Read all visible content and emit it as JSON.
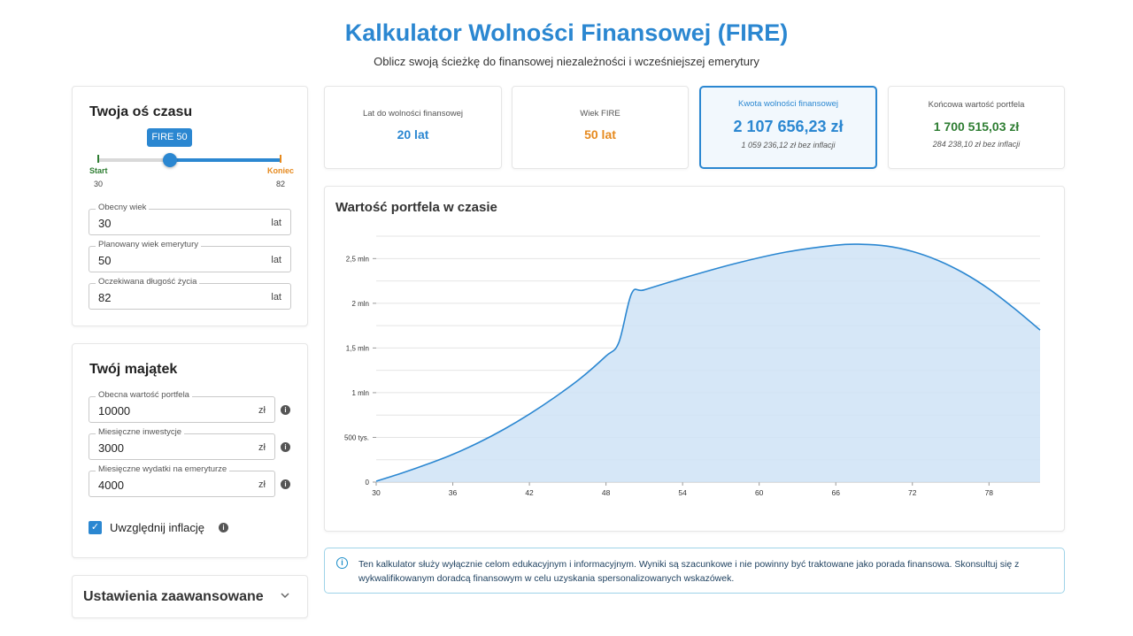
{
  "header": {
    "title": "Kalkulator Wolności Finansowej (FIRE)",
    "subtitle": "Oblicz swoją ścieżkę do finansowej niezależności i wcześniejszej emerytury"
  },
  "timeline": {
    "title": "Twoja oś czasu",
    "fire_bubble": "FIRE 50",
    "start_label": "Start",
    "end_label": "Koniec",
    "start_value": "30",
    "end_value": "82",
    "slider_fire_age": 50,
    "fields": [
      {
        "label": "Obecny wiek",
        "value": "30",
        "unit": "lat"
      },
      {
        "label": "Planowany wiek emerytury",
        "value": "50",
        "unit": "lat"
      },
      {
        "label": "Oczekiwana długość życia",
        "value": "82",
        "unit": "lat"
      }
    ]
  },
  "assets": {
    "title": "Twój majątek",
    "fields": [
      {
        "label": "Obecna wartość portfela",
        "value": "10000",
        "unit": "zł"
      },
      {
        "label": "Miesięczne inwestycje",
        "value": "3000",
        "unit": "zł"
      },
      {
        "label": "Miesięczne wydatki na emeryturze",
        "value": "4000",
        "unit": "zł"
      }
    ],
    "inflation_label": "Uwzględnij inflację",
    "inflation_checked": true
  },
  "advanced": {
    "title": "Ustawienia zaawansowane"
  },
  "stats": [
    {
      "label": "Lat do wolności finansowej",
      "value": "20 lat",
      "sub": "",
      "color": "#2b87d1"
    },
    {
      "label": "Wiek FIRE",
      "value": "50 lat",
      "sub": "",
      "color": "#e68a1f"
    },
    {
      "label": "Kwota wolności finansowej",
      "value": "2 107 656,23 zł",
      "sub": "1 059 236,12 zł bez inflacji",
      "color": "#2b87d1"
    },
    {
      "label": "Końcowa wartość portfela",
      "value": "1 700 515,03 zł",
      "sub": "284 238,10 zł bez inflacji",
      "color": "#2e7d32"
    }
  ],
  "chart": {
    "title": "Wartość portfela w czasie"
  },
  "chart_data": {
    "type": "area",
    "title": "Wartość portfela w czasie",
    "xlabel": "",
    "ylabel": "",
    "x_ticks": [
      "30",
      "36",
      "42",
      "48",
      "54",
      "60",
      "66",
      "72",
      "78"
    ],
    "y_ticks": [
      "0",
      "500 tys.",
      "1 mln",
      "1,5 mln",
      "2 mln",
      "2,5 mln"
    ],
    "xlim": [
      30,
      82
    ],
    "ylim": [
      0,
      2800000
    ],
    "grid": true,
    "color": "#2b87d1",
    "x": [
      30,
      32,
      34,
      36,
      38,
      40,
      42,
      44,
      46,
      48,
      49,
      50,
      51,
      54,
      58,
      62,
      66,
      68,
      70,
      72,
      74,
      76,
      78,
      80,
      82
    ],
    "values": [
      10000,
      100000,
      200000,
      310000,
      440000,
      590000,
      760000,
      950000,
      1160000,
      1410000,
      1560000,
      2107656,
      2150000,
      2280000,
      2440000,
      2570000,
      2650000,
      2660000,
      2640000,
      2580000,
      2480000,
      2340000,
      2160000,
      1940000,
      1700515
    ]
  },
  "disclaimer": {
    "text": "Ten kalkulator służy wyłącznie celom edukacyjnym i informacyjnym. Wyniki są szacunkowe i nie powinny być traktowane jako porada finansowa. Skonsultuj się z wykwalifikowanym doradcą finansowym w celu uzyskania spersonalizowanych wskazówek."
  }
}
